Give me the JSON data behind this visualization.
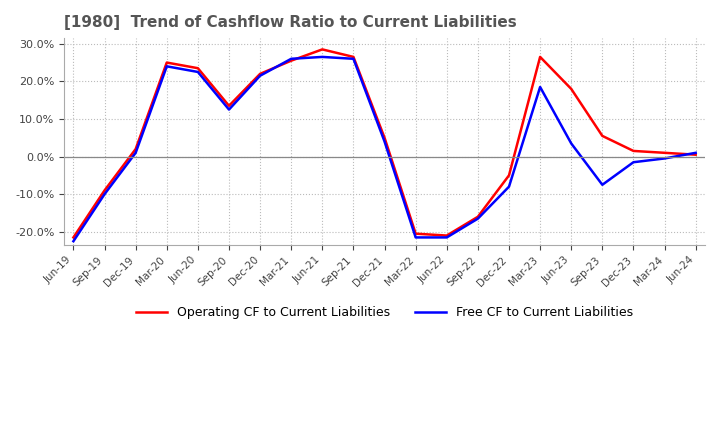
{
  "title": "[1980]  Trend of Cashflow Ratio to Current Liabilities",
  "x_labels": [
    "Jun-19",
    "Sep-19",
    "Dec-19",
    "Mar-20",
    "Jun-20",
    "Sep-20",
    "Dec-20",
    "Mar-21",
    "Jun-21",
    "Sep-21",
    "Dec-21",
    "Mar-22",
    "Jun-22",
    "Sep-22",
    "Dec-22",
    "Mar-23",
    "Jun-23",
    "Sep-23",
    "Dec-23",
    "Mar-24",
    "Jun-24"
  ],
  "operating_cf": [
    -0.215,
    -0.09,
    0.02,
    0.25,
    0.235,
    0.135,
    0.22,
    0.255,
    0.285,
    0.265,
    0.05,
    -0.205,
    -0.21,
    -0.16,
    -0.05,
    0.265,
    0.18,
    0.055,
    0.015,
    0.01,
    0.005
  ],
  "free_cf": [
    -0.225,
    -0.1,
    0.01,
    0.24,
    0.225,
    0.125,
    0.215,
    0.26,
    0.265,
    0.26,
    0.04,
    -0.215,
    -0.215,
    -0.165,
    -0.08,
    0.185,
    0.035,
    -0.075,
    -0.015,
    -0.005,
    0.01
  ],
  "operating_color": "#ff0000",
  "free_color": "#0000ff",
  "ylim": [
    -0.235,
    0.315
  ],
  "yticks": [
    -0.2,
    -0.1,
    0.0,
    0.1,
    0.2,
    0.3
  ],
  "background_color": "#ffffff",
  "grid_color": "#bbbbbb",
  "legend_operating": "Operating CF to Current Liabilities",
  "legend_free": "Free CF to Current Liabilities",
  "title_color": "#555555",
  "title_fontsize": 11
}
